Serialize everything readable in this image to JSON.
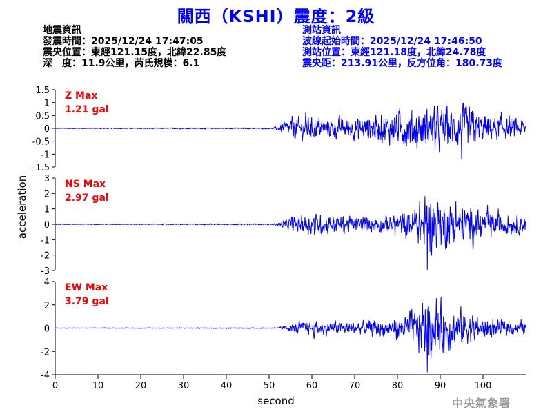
{
  "header": {
    "title": "關西（KSHI）震度：2級",
    "event_info": {
      "heading": "地震資訊",
      "origin_time": "發震時間：2025/12/24 17:47:05",
      "epicenter": "震央位置：東經121.15度，北緯22.85度",
      "depth_magnitude": "深　度：11.9公里，芮氏規模：6.1"
    },
    "station_info": {
      "heading": "測站資訊",
      "wave_start_time": "波線起始時間：2025/12/24 17:46:50",
      "station_location": "測站位置：東經121.18度，北緯24.78度",
      "distance_azimuth": "震央距：213.91公里，反方位角：180.73度"
    }
  },
  "footer": {
    "agency": "中央氣象署"
  },
  "colors": {
    "title": "#0000ff",
    "trace": "#0000ff",
    "max_label": "#ff0000",
    "axis": "#000000",
    "agency": "#999999"
  },
  "chart_data": {
    "type": "line",
    "xlabel": "second",
    "ylabel": "acceleration",
    "xlim": [
      0,
      110
    ],
    "xticks": [
      0,
      10,
      20,
      30,
      40,
      50,
      60,
      70,
      80,
      90,
      100
    ],
    "grid": false,
    "panels": [
      {
        "name": "Z",
        "max_label": "Z Max",
        "max_value_label": "1.21 gal",
        "max_value": 1.21,
        "ylim": [
          -1.5,
          1.5
        ],
        "yticks": [
          "1.5",
          "1",
          "0.5",
          "0",
          "-0.5",
          "-1",
          "-1.5"
        ],
        "waveform": {
          "t": [
            0,
            51,
            53,
            55,
            58,
            62,
            66,
            70,
            75,
            80,
            85,
            90,
            95,
            100,
            105,
            110
          ],
          "amplitude": [
            0.02,
            0.03,
            0.25,
            0.6,
            0.65,
            0.55,
            0.55,
            0.6,
            0.7,
            0.95,
            1.05,
            1.1,
            1.2,
            0.8,
            0.55,
            0.5
          ]
        }
      },
      {
        "name": "NS",
        "max_label": "NS Max",
        "max_value_label": "2.97 gal",
        "max_value": 2.97,
        "ylim": [
          -3,
          3
        ],
        "yticks": [
          "3",
          "2",
          "1",
          "0",
          "-1",
          "-2",
          "-3"
        ],
        "waveform": {
          "t": [
            0,
            51,
            53,
            56,
            60,
            66,
            70,
            75,
            80,
            84,
            87,
            90,
            95,
            100,
            105,
            110
          ],
          "amplitude": [
            0.03,
            0.05,
            0.3,
            0.7,
            1.0,
            0.8,
            0.65,
            0.7,
            0.9,
            1.5,
            2.9,
            2.2,
            1.8,
            1.2,
            0.9,
            0.8
          ]
        }
      },
      {
        "name": "EW",
        "max_label": "EW Max",
        "max_value_label": "3.79 gal",
        "max_value": 3.79,
        "ylim": [
          -4,
          4
        ],
        "yticks": [
          "4",
          "2",
          "0",
          "-2",
          "-4"
        ],
        "waveform": {
          "t": [
            0,
            52,
            54,
            57,
            61,
            66,
            70,
            75,
            80,
            84,
            87,
            90,
            95,
            100,
            105,
            110
          ],
          "amplitude": [
            0.03,
            0.05,
            0.35,
            0.7,
            0.85,
            0.8,
            0.8,
            0.95,
            1.3,
            2.0,
            3.7,
            3.0,
            2.2,
            1.3,
            0.8,
            0.7
          ]
        }
      }
    ]
  }
}
